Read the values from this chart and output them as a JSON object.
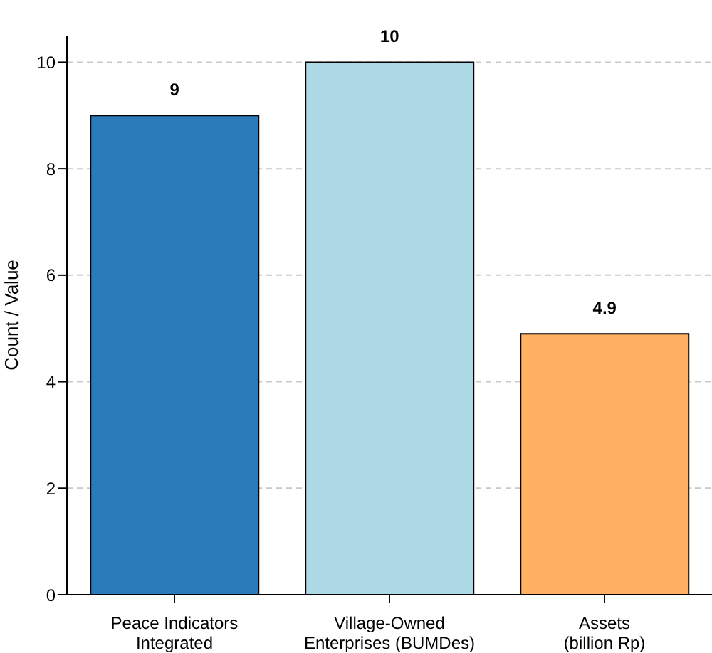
{
  "chart_data": {
    "type": "bar",
    "ylabel": "Count / Value",
    "categories": [
      "Peace Indicators\nIntegrated",
      "Village-Owned\nEnterprises (BUMDes)",
      "Assets\n(billion Rp)"
    ],
    "values": [
      9,
      10,
      4.9
    ],
    "colors": [
      "#2b7bba",
      "#add8e6",
      "#ffb062"
    ],
    "ylim": [
      0,
      10.5
    ],
    "yticks": [
      0,
      2,
      4,
      6,
      8,
      10
    ],
    "grid": "y",
    "data_labels": true
  }
}
